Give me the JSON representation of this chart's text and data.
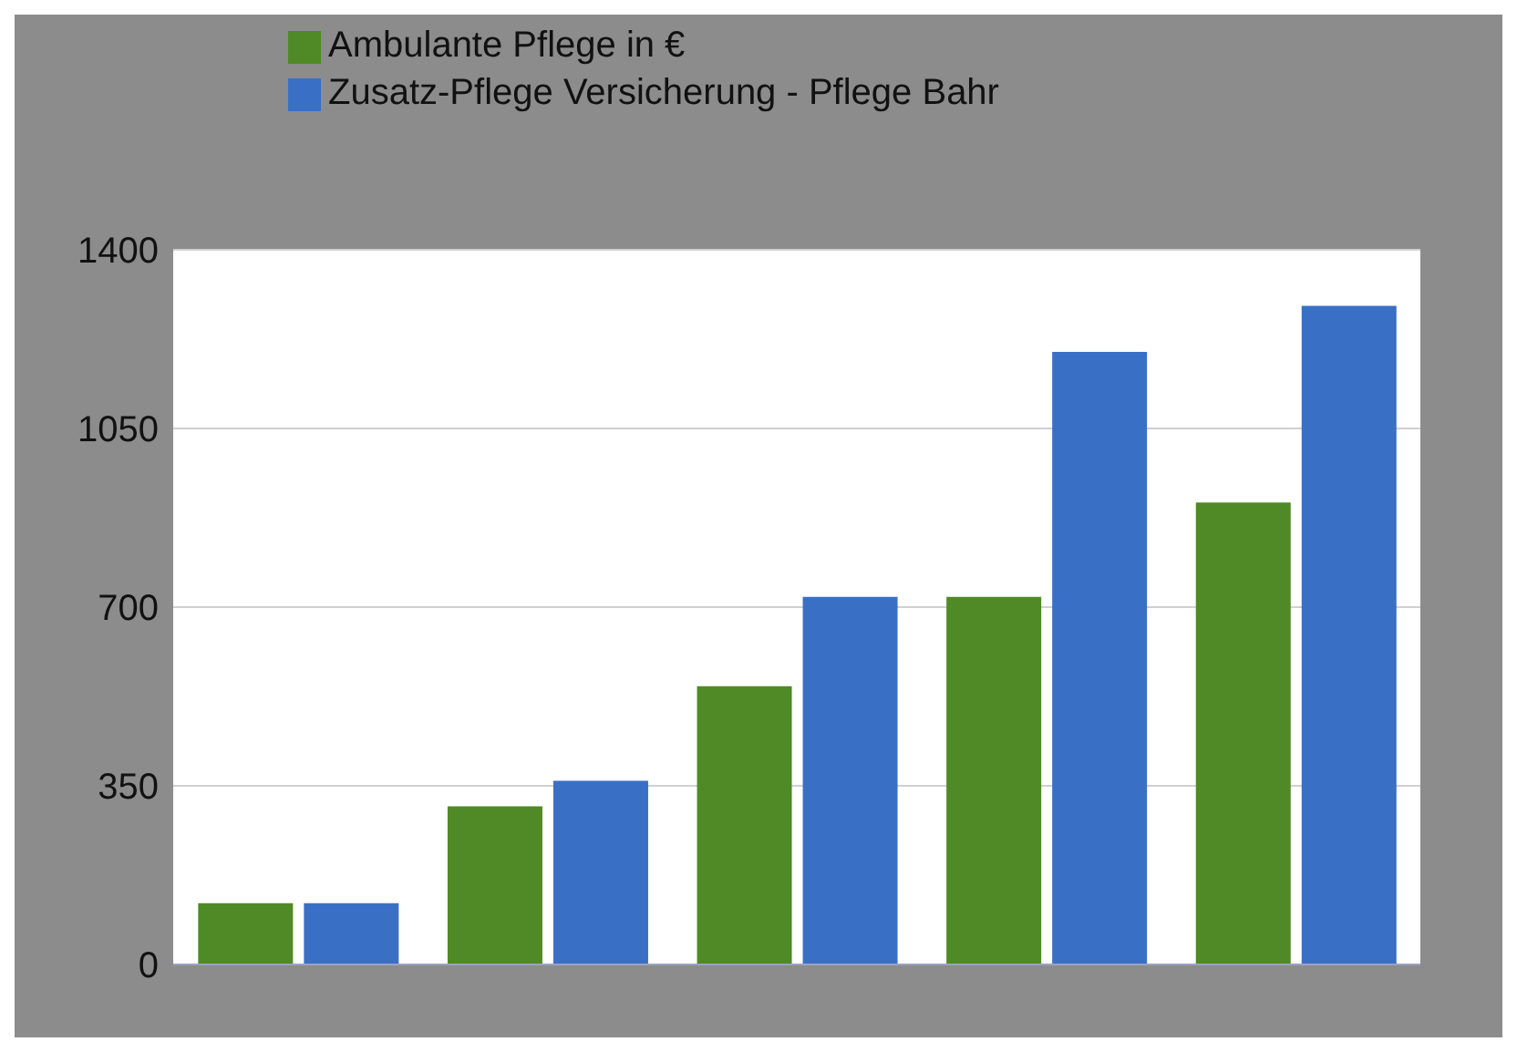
{
  "chart_data": {
    "type": "bar",
    "categories": [
      null,
      null,
      null,
      null,
      null
    ],
    "series": [
      {
        "name": "Ambulante Pflege in €",
        "color": "#4f8a26",
        "values": [
          120,
          310,
          545,
          720,
          905
        ]
      },
      {
        "name": "Zusatz-Pflege Versicherung - Pflege Bahr",
        "color": "#3a6fc6",
        "values": [
          120,
          360,
          720,
          1200,
          1290
        ]
      }
    ],
    "ylim": [
      0,
      1400
    ],
    "yticks": [
      0,
      350,
      700,
      1050,
      1400
    ],
    "grid": "y",
    "legend": "top left"
  }
}
